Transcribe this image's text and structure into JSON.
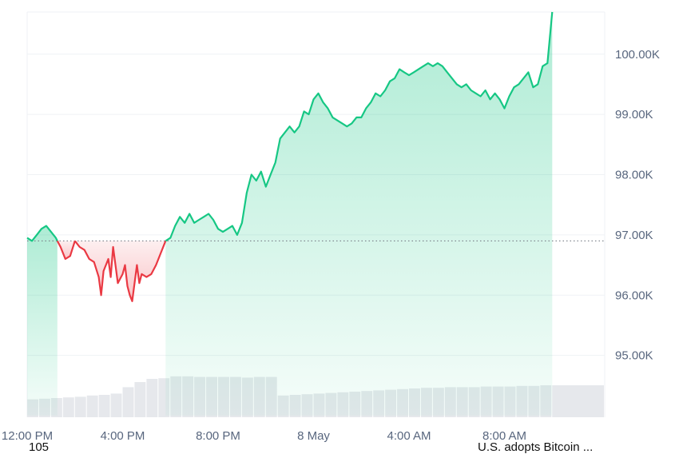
{
  "chart_data": {
    "type": "area",
    "title": "",
    "xlabel": "",
    "ylabel": "",
    "baseline": 96900,
    "ylim": [
      94000,
      100700
    ],
    "y_ticks": [
      {
        "value": 95000,
        "label": "95.00K"
      },
      {
        "value": 96000,
        "label": "96.00K"
      },
      {
        "value": 97000,
        "label": "97.00K"
      },
      {
        "value": 98000,
        "label": "98.00K"
      },
      {
        "value": 99000,
        "label": "99.00K"
      },
      {
        "value": 100000,
        "label": "100.00K"
      }
    ],
    "x_range_hours": [
      0,
      24.2
    ],
    "x_ticks": [
      {
        "hour": 0,
        "label": "12:00 PM"
      },
      {
        "hour": 4,
        "label": "4:00 PM"
      },
      {
        "hour": 8,
        "label": "8:00 PM"
      },
      {
        "hour": 12,
        "label": "8 May"
      },
      {
        "hour": 16,
        "label": "4:00 AM"
      },
      {
        "hour": 20,
        "label": "8:00 AM"
      }
    ],
    "grid": true,
    "colors": {
      "up": "#16c784",
      "down": "#ea3943",
      "grid": "#eff2f5",
      "volume": "#e6e8ec"
    },
    "series": [
      {
        "values": [
          [
            0.0,
            96950
          ],
          [
            0.2,
            96900
          ],
          [
            0.4,
            97000
          ],
          [
            0.6,
            97100
          ],
          [
            0.8,
            97150
          ],
          [
            1.0,
            97050
          ],
          [
            1.2,
            96950
          ],
          [
            1.4,
            96800
          ],
          [
            1.6,
            96600
          ],
          [
            1.8,
            96650
          ],
          [
            2.0,
            96900
          ],
          [
            2.2,
            96800
          ],
          [
            2.4,
            96750
          ],
          [
            2.6,
            96600
          ],
          [
            2.8,
            96550
          ],
          [
            3.0,
            96300
          ],
          [
            3.1,
            96000
          ],
          [
            3.2,
            96400
          ],
          [
            3.4,
            96600
          ],
          [
            3.5,
            96300
          ],
          [
            3.6,
            96800
          ],
          [
            3.8,
            96200
          ],
          [
            4.0,
            96350
          ],
          [
            4.1,
            96500
          ],
          [
            4.2,
            96150
          ],
          [
            4.3,
            96000
          ],
          [
            4.4,
            95900
          ],
          [
            4.6,
            96500
          ],
          [
            4.7,
            96200
          ],
          [
            4.8,
            96350
          ],
          [
            5.0,
            96300
          ],
          [
            5.2,
            96350
          ],
          [
            5.4,
            96500
          ],
          [
            5.6,
            96700
          ],
          [
            5.8,
            96900
          ],
          [
            6.0,
            96950
          ],
          [
            6.2,
            97150
          ],
          [
            6.4,
            97300
          ],
          [
            6.6,
            97200
          ],
          [
            6.8,
            97350
          ],
          [
            7.0,
            97200
          ],
          [
            7.2,
            97250
          ],
          [
            7.4,
            97300
          ],
          [
            7.6,
            97350
          ],
          [
            7.8,
            97250
          ],
          [
            8.0,
            97100
          ],
          [
            8.2,
            97050
          ],
          [
            8.4,
            97100
          ],
          [
            8.6,
            97150
          ],
          [
            8.8,
            97000
          ],
          [
            9.0,
            97200
          ],
          [
            9.2,
            97700
          ],
          [
            9.4,
            98000
          ],
          [
            9.6,
            97900
          ],
          [
            9.8,
            98050
          ],
          [
            10.0,
            97800
          ],
          [
            10.2,
            98000
          ],
          [
            10.4,
            98200
          ],
          [
            10.6,
            98600
          ],
          [
            10.8,
            98700
          ],
          [
            11.0,
            98800
          ],
          [
            11.2,
            98700
          ],
          [
            11.4,
            98800
          ],
          [
            11.6,
            99050
          ],
          [
            11.8,
            99000
          ],
          [
            12.0,
            99250
          ],
          [
            12.2,
            99350
          ],
          [
            12.4,
            99200
          ],
          [
            12.6,
            99100
          ],
          [
            12.8,
            98950
          ],
          [
            13.0,
            98900
          ],
          [
            13.2,
            98850
          ],
          [
            13.4,
            98800
          ],
          [
            13.6,
            98850
          ],
          [
            13.8,
            98950
          ],
          [
            14.0,
            98950
          ],
          [
            14.2,
            99100
          ],
          [
            14.4,
            99200
          ],
          [
            14.6,
            99350
          ],
          [
            14.8,
            99300
          ],
          [
            15.0,
            99400
          ],
          [
            15.2,
            99550
          ],
          [
            15.4,
            99600
          ],
          [
            15.6,
            99750
          ],
          [
            15.8,
            99700
          ],
          [
            16.0,
            99650
          ],
          [
            16.2,
            99700
          ],
          [
            16.4,
            99750
          ],
          [
            16.6,
            99800
          ],
          [
            16.8,
            99850
          ],
          [
            17.0,
            99800
          ],
          [
            17.2,
            99850
          ],
          [
            17.4,
            99800
          ],
          [
            17.6,
            99700
          ],
          [
            17.8,
            99600
          ],
          [
            18.0,
            99500
          ],
          [
            18.2,
            99450
          ],
          [
            18.4,
            99500
          ],
          [
            18.6,
            99400
          ],
          [
            18.8,
            99350
          ],
          [
            19.0,
            99300
          ],
          [
            19.2,
            99400
          ],
          [
            19.4,
            99250
          ],
          [
            19.6,
            99350
          ],
          [
            19.8,
            99250
          ],
          [
            20.0,
            99100
          ],
          [
            20.2,
            99300
          ],
          [
            20.4,
            99450
          ],
          [
            20.6,
            99500
          ],
          [
            20.8,
            99600
          ],
          [
            21.0,
            99700
          ],
          [
            21.2,
            99450
          ],
          [
            21.4,
            99500
          ],
          [
            21.6,
            99800
          ],
          [
            21.8,
            99850
          ],
          [
            22.0,
            100700
          ]
        ]
      }
    ],
    "volume": [
      [
        0.0,
        0.28
      ],
      [
        0.5,
        0.29
      ],
      [
        1.0,
        0.3
      ],
      [
        1.5,
        0.31
      ],
      [
        2.0,
        0.32
      ],
      [
        2.5,
        0.34
      ],
      [
        3.0,
        0.35
      ],
      [
        3.5,
        0.37
      ],
      [
        4.0,
        0.47
      ],
      [
        4.5,
        0.55
      ],
      [
        5.0,
        0.6
      ],
      [
        5.5,
        0.61
      ],
      [
        6.0,
        0.64
      ],
      [
        6.5,
        0.64
      ],
      [
        7.0,
        0.63
      ],
      [
        7.5,
        0.63
      ],
      [
        8.0,
        0.63
      ],
      [
        8.5,
        0.63
      ],
      [
        9.0,
        0.62
      ],
      [
        9.5,
        0.63
      ],
      [
        10.0,
        0.63
      ],
      [
        10.5,
        0.34
      ],
      [
        11.0,
        0.35
      ],
      [
        11.5,
        0.36
      ],
      [
        12.0,
        0.37
      ],
      [
        12.5,
        0.38
      ],
      [
        13.0,
        0.39
      ],
      [
        13.5,
        0.4
      ],
      [
        14.0,
        0.41
      ],
      [
        14.5,
        0.42
      ],
      [
        15.0,
        0.43
      ],
      [
        15.5,
        0.44
      ],
      [
        16.0,
        0.45
      ],
      [
        16.5,
        0.46
      ],
      [
        17.0,
        0.46
      ],
      [
        17.5,
        0.47
      ],
      [
        18.0,
        0.47
      ],
      [
        18.5,
        0.47
      ],
      [
        19.0,
        0.48
      ],
      [
        19.5,
        0.48
      ],
      [
        20.0,
        0.48
      ],
      [
        20.5,
        0.49
      ],
      [
        21.0,
        0.49
      ],
      [
        21.5,
        0.5
      ],
      [
        22.0,
        0.5
      ]
    ]
  },
  "footer": {
    "left_text": "105",
    "right_text": "U.S. adopts Bitcoin ..."
  }
}
